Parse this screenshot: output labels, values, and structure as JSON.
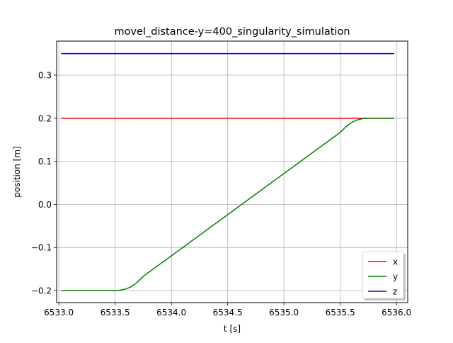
{
  "chart_data": {
    "type": "line",
    "title": "movel_distance-y=400_singularity_simulation",
    "xlabel": "t [s]",
    "ylabel": "position [m]",
    "xlim": [
      6532.98,
      6536.1
    ],
    "ylim": [
      -0.228,
      0.379
    ],
    "xticks": [
      6533.0,
      6533.5,
      6534.0,
      6534.5,
      6535.0,
      6535.5,
      6536.0
    ],
    "xtick_labels": [
      "6533.0",
      "6533.5",
      "6534.0",
      "6534.5",
      "6535.0",
      "6535.5",
      "6536.0"
    ],
    "yticks": [
      -0.2,
      -0.1,
      0.0,
      0.1,
      0.2,
      0.3
    ],
    "ytick_labels": [
      "−0.2",
      "−0.1",
      "0.0",
      "0.1",
      "0.2",
      "0.3"
    ],
    "grid": true,
    "legend_position": "lower-right",
    "series": [
      {
        "name": "x",
        "color": "#ff0000",
        "x": [
          6533.02,
          6535.98
        ],
        "y": [
          0.2,
          0.2
        ]
      },
      {
        "name": "y",
        "color": "#008000",
        "x": [
          6533.02,
          6533.4,
          6533.5,
          6533.55,
          6533.6,
          6533.65,
          6533.7,
          6533.75,
          6535.5,
          6535.55,
          6535.6,
          6535.65,
          6535.7,
          6535.75,
          6535.8,
          6535.98
        ],
        "y": [
          -0.2,
          -0.2,
          -0.2,
          -0.199,
          -0.196,
          -0.19,
          -0.18,
          -0.167,
          0.167,
          0.18,
          0.19,
          0.196,
          0.199,
          0.2,
          0.2,
          0.2
        ]
      },
      {
        "name": "z",
        "color": "#0000ff",
        "x": [
          6533.02,
          6535.98
        ],
        "y": [
          0.35,
          0.35
        ]
      }
    ]
  }
}
